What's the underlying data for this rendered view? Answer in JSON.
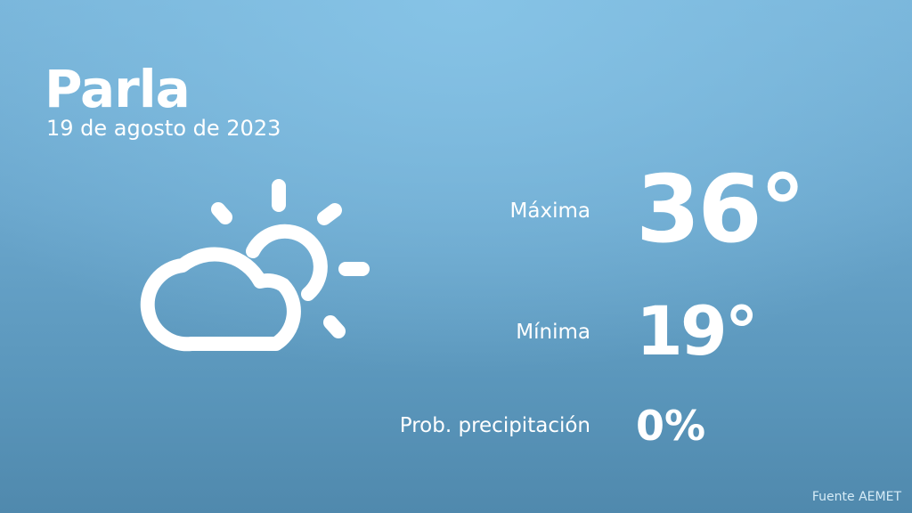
{
  "location": {
    "city": "Parla",
    "date": "19 de agosto de 2023"
  },
  "forecast": {
    "icon": "partly-cloudy-icon",
    "max_label": "Máxima",
    "max_value": "36°",
    "min_label": "Mínima",
    "min_value": "19°",
    "prob_label": "Prob. precipitación",
    "prob_value": "0%"
  },
  "source": "Fuente AEMET"
}
